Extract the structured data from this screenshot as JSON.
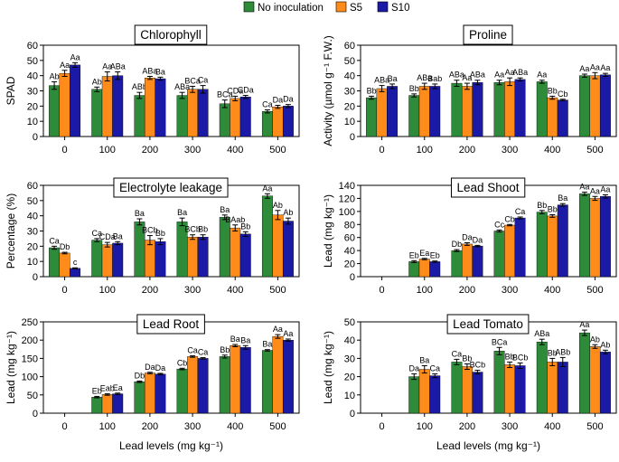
{
  "legend": {
    "entries": [
      {
        "name": "No inoculation",
        "color": "#2e8b3a"
      },
      {
        "name": "S5",
        "color": "#ff8c1a"
      },
      {
        "name": "S10",
        "color": "#1a1aa6"
      }
    ]
  },
  "chart_data": [
    {
      "type": "bar",
      "title": "Chlorophyll",
      "ylabel": "SPAD",
      "xlabel": "",
      "ylim": [
        0,
        60
      ],
      "yticks": [
        "0",
        "10",
        "20",
        "30",
        "40",
        "50",
        "60"
      ],
      "categories": [
        "0",
        "100",
        "200",
        "300",
        "400",
        "500"
      ],
      "series": [
        {
          "name": "No inoculation",
          "values": [
            33.5,
            31,
            27,
            27,
            21.5,
            16.5
          ],
          "errors": [
            2.5,
            1.5,
            2,
            2,
            2.5,
            1
          ],
          "labels": [
            "Ab",
            "Ab",
            "ABb",
            "ABa",
            "BCa",
            "Ca"
          ]
        },
        {
          "name": "S5",
          "values": [
            41.5,
            39.5,
            38.5,
            31,
            25,
            19.5
          ],
          "errors": [
            2,
            3,
            1,
            2,
            1.5,
            1
          ],
          "labels": [
            "Aa",
            "Aa",
            "ABa",
            "BCa",
            "CDa",
            "Da"
          ]
        },
        {
          "name": "S10",
          "values": [
            47,
            40,
            38,
            31,
            26,
            20
          ],
          "errors": [
            1.5,
            2.5,
            1,
            2.5,
            1,
            1
          ],
          "labels": [
            "Aa",
            "ABa",
            "Ba",
            "Ca",
            "CDa",
            "Da"
          ]
        }
      ]
    },
    {
      "type": "bar",
      "title": "Proline",
      "ylabel": "Activity (µmol g⁻¹ F.W.)",
      "xlabel": "",
      "ylim": [
        0,
        60
      ],
      "yticks": [
        "0",
        "10",
        "20",
        "30",
        "40",
        "50",
        "60"
      ],
      "categories": [
        "0",
        "100",
        "200",
        "300",
        "400",
        "500"
      ],
      "series": [
        {
          "name": "No inoculation",
          "values": [
            25.5,
            27,
            35,
            35.5,
            36,
            40
          ],
          "errors": [
            1,
            1,
            2,
            1.5,
            1,
            1
          ],
          "labels": [
            "Bb",
            "Bb",
            "ABa",
            "Aa",
            "Aa",
            "Aa"
          ]
        },
        {
          "name": "S5",
          "values": [
            31.5,
            33,
            33,
            36,
            25.5,
            40
          ],
          "errors": [
            2,
            2,
            2,
            2.5,
            1,
            2
          ],
          "labels": [
            "ABa",
            "ABa",
            "Aa",
            "Aa",
            "Bb",
            "Aa"
          ]
        },
        {
          "name": "S10",
          "values": [
            33,
            33,
            35.5,
            37.5,
            24,
            40.5
          ],
          "errors": [
            1.5,
            1.5,
            1.5,
            1,
            0.5,
            1
          ],
          "labels": [
            "Ba",
            "Bab",
            "ABa",
            "ABa",
            "Cb",
            "Aa"
          ]
        }
      ]
    },
    {
      "type": "bar",
      "title": "Electrolyte leakage",
      "ylabel": "Percentage (%)",
      "xlabel": "",
      "ylim": [
        0,
        60
      ],
      "yticks": [
        "0",
        "10",
        "20",
        "30",
        "40",
        "50",
        "60"
      ],
      "categories": [
        "0",
        "100",
        "200",
        "300",
        "400",
        "500"
      ],
      "series": [
        {
          "name": "No inoculation",
          "values": [
            19,
            24,
            36,
            36,
            39,
            53
          ],
          "errors": [
            1,
            1,
            2,
            2.5,
            1.5,
            1.5
          ],
          "labels": [
            "Ca",
            "Ca",
            "Ba",
            "Ba",
            "Ba",
            "Aa"
          ]
        },
        {
          "name": "S5",
          "values": [
            15.5,
            21,
            24,
            26,
            32,
            40.5
          ],
          "errors": [
            0.5,
            1.5,
            3,
            1.5,
            2,
            3
          ],
          "labels": [
            "Db",
            "CDa",
            "BCb",
            "BCb",
            "BAab",
            "Ab"
          ]
        },
        {
          "name": "S10",
          "values": [
            5.5,
            22,
            23,
            26,
            28,
            36.5
          ],
          "errors": [
            0.3,
            1,
            2,
            1.5,
            1.5,
            2
          ],
          "labels": [
            "c",
            "Ba",
            "Bb",
            "Bb",
            "Bb",
            "Ab"
          ]
        }
      ]
    },
    {
      "type": "bar",
      "title": "Lead Shoot",
      "ylabel": "Lead (mg kg⁻¹)",
      "xlabel": "",
      "ylim": [
        0,
        140
      ],
      "yticks": [
        "0",
        "20",
        "40",
        "60",
        "80",
        "100",
        "120",
        "140"
      ],
      "categories": [
        "0",
        "100",
        "200",
        "300",
        "400",
        "500"
      ],
      "series": [
        {
          "name": "No inoculation",
          "values": [
            0,
            23,
            40,
            70,
            99,
            127
          ],
          "errors": [
            0,
            1.5,
            1.5,
            1.5,
            2.5,
            2.5
          ],
          "labels": [
            "",
            "Eb",
            "Db",
            "Cc",
            "Bb",
            "Aa"
          ]
        },
        {
          "name": "S5",
          "values": [
            0,
            27,
            50,
            79,
            93,
            120
          ],
          "errors": [
            0,
            1,
            2,
            1,
            2,
            3
          ],
          "labels": [
            "",
            "Ea",
            "Da",
            "Cb",
            "Bb",
            "Aa"
          ]
        },
        {
          "name": "S10",
          "values": [
            0,
            23,
            47,
            90,
            110,
            123
          ],
          "errors": [
            0,
            1,
            1,
            1.5,
            2,
            2.5
          ],
          "labels": [
            "",
            "Eb",
            "Da",
            "Ca",
            "Ba",
            "Aa"
          ]
        }
      ]
    },
    {
      "type": "bar",
      "title": "Lead Root",
      "ylabel": "Lead (mg kg⁻¹)",
      "xlabel": "Lead levels (mg kg⁻¹)",
      "ylim": [
        0,
        250
      ],
      "yticks": [
        "0",
        "50",
        "100",
        "150",
        "200",
        "250"
      ],
      "categories": [
        "0",
        "100",
        "200",
        "300",
        "400",
        "500"
      ],
      "series": [
        {
          "name": "No inoculation",
          "values": [
            0,
            44,
            86,
            121,
            155,
            172
          ],
          "errors": [
            0,
            2,
            2,
            2,
            4,
            2
          ],
          "labels": [
            "",
            "Eb",
            "Db",
            "Cb",
            "Bb",
            "Ba"
          ]
        },
        {
          "name": "S5",
          "values": [
            0,
            51,
            110,
            155,
            185,
            210
          ],
          "errors": [
            0,
            2,
            2,
            2,
            3,
            5
          ],
          "labels": [
            "",
            "Eab",
            "Da",
            "Ca",
            "Ba",
            "Aa"
          ]
        },
        {
          "name": "S10",
          "values": [
            0,
            53,
            107,
            150,
            180,
            200
          ],
          "errors": [
            0,
            2,
            2,
            2,
            5,
            3
          ],
          "labels": [
            "",
            "Ea",
            "Da",
            "Ca",
            "Ba",
            "Aa"
          ]
        }
      ]
    },
    {
      "type": "bar",
      "title": "Lead Tomato",
      "ylabel": "Lead (mg kg⁻¹)",
      "xlabel": "Lead levels (mg kg⁻¹)",
      "ylim": [
        0,
        50
      ],
      "yticks": [
        "0",
        "10",
        "20",
        "30",
        "40",
        "50"
      ],
      "categories": [
        "0",
        "100",
        "200",
        "300",
        "400",
        "500"
      ],
      "series": [
        {
          "name": "No inoculation",
          "values": [
            0,
            20,
            28,
            34,
            39,
            44
          ],
          "errors": [
            0,
            1.5,
            1.5,
            2,
            1.5,
            1.5
          ],
          "labels": [
            "",
            "Da",
            "Ca",
            "BCa",
            "ABa",
            "Aa"
          ]
        },
        {
          "name": "S5",
          "values": [
            0,
            24,
            25.5,
            26.5,
            28,
            36.5
          ],
          "errors": [
            0,
            2,
            1.5,
            1.5,
            2,
            1
          ],
          "labels": [
            "",
            "Ba",
            "Bb",
            "Bb",
            "Bb",
            "Ab"
          ]
        },
        {
          "name": "S10",
          "values": [
            0,
            20.5,
            22.5,
            26,
            28,
            33.5
          ],
          "errors": [
            0,
            1,
            1,
            1.5,
            2.5,
            1
          ],
          "labels": [
            "",
            "Ca",
            "BCb",
            "BCb",
            "ABb",
            "Ab"
          ]
        }
      ]
    }
  ]
}
